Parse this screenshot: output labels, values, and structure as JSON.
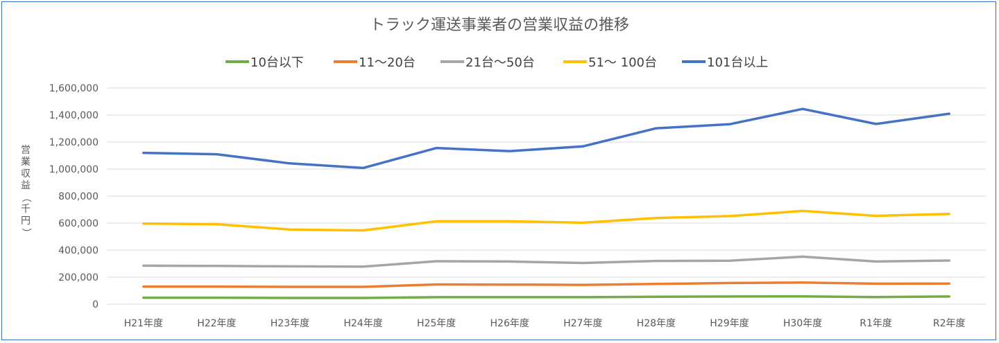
{
  "chart_data": {
    "type": "line",
    "title": "トラック運送事業者の営業収益の推移",
    "ylabel": "営業収益（千円）",
    "xlabel": "",
    "categories": [
      "H21年度",
      "H22年度",
      "H23年度",
      "H24年度",
      "H25年度",
      "H26年度",
      "H27年度",
      "H28年度",
      "H29年度",
      "H30年度",
      "R1年度",
      "R2年度"
    ],
    "ylim": [
      0,
      1600000
    ],
    "ytick_step": 200000,
    "yticks": [
      "0",
      "200,000",
      "400,000",
      "600,000",
      "800,000",
      "1,000,000",
      "1,200,000",
      "1,400,000",
      "1,600,000"
    ],
    "grid": true,
    "legend_position": "top",
    "series": [
      {
        "name": "10台以下",
        "color": "#70ad47",
        "values": [
          48000,
          48000,
          46000,
          46000,
          52000,
          52000,
          52000,
          55000,
          57000,
          58000,
          53000,
          57000
        ]
      },
      {
        "name": "11～20台",
        "color": "#ed7d31",
        "values": [
          130000,
          130000,
          128000,
          128000,
          146000,
          145000,
          143000,
          150000,
          157000,
          160000,
          152000,
          153000
        ]
      },
      {
        "name": "21台～50台",
        "color": "#a5a5a5",
        "values": [
          285000,
          283000,
          280000,
          278000,
          318000,
          316000,
          305000,
          320000,
          322000,
          352000,
          316000,
          323000
        ]
      },
      {
        "name": "51～ 100台",
        "color": "#ffc000",
        "values": [
          597000,
          592000,
          553000,
          546000,
          614000,
          614000,
          603000,
          638000,
          652000,
          690000,
          654000,
          668000
        ]
      },
      {
        "name": "101台以上",
        "color": "#4472c4",
        "values": [
          1120000,
          1110000,
          1042000,
          1008000,
          1156000,
          1133000,
          1168000,
          1302000,
          1332000,
          1445000,
          1334000,
          1410000
        ]
      }
    ]
  }
}
